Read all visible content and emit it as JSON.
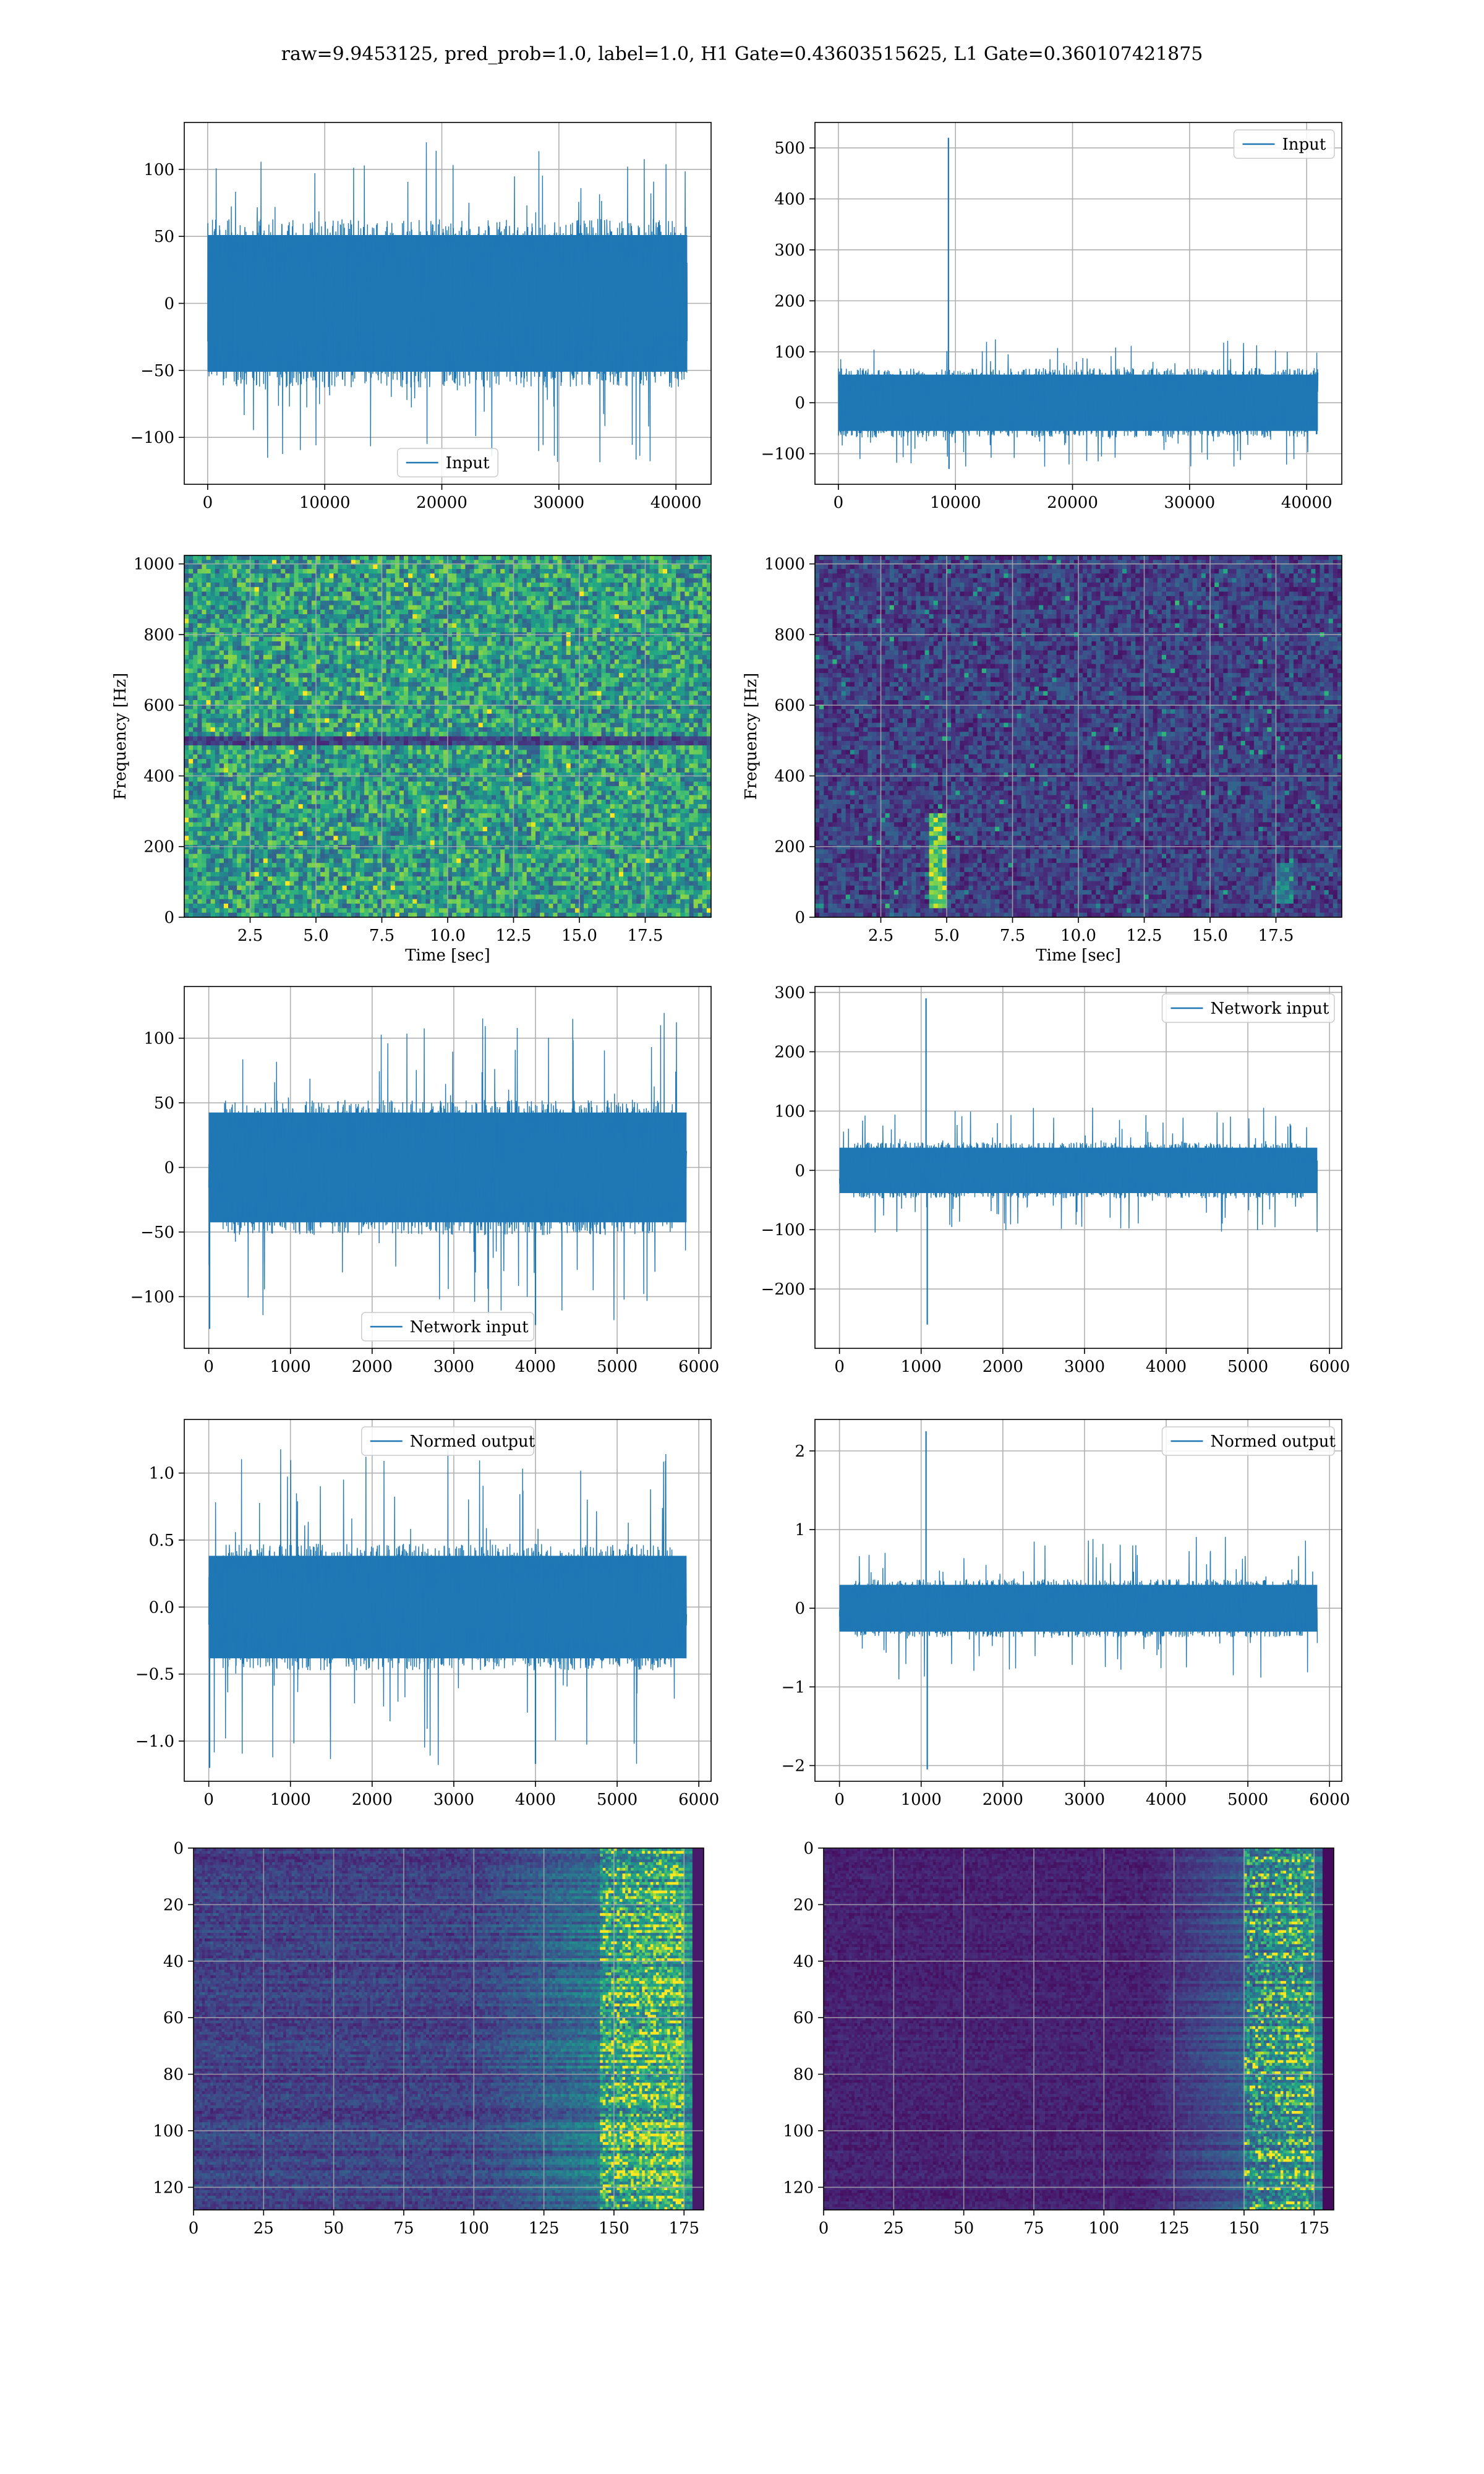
{
  "figure": {
    "suptitle": "raw=9.9453125, pred_prob=1.0, label=1.0, H1 Gate=0.43603515625, L1 Gate=0.360107421875"
  },
  "colors": {
    "line": "#1f77b4",
    "grid": "#b0b0b0",
    "viridis": [
      "#440154",
      "#482475",
      "#414487",
      "#355f8d",
      "#2a788e",
      "#21918c",
      "#22a884",
      "#44bf70",
      "#7ad151",
      "#bddf26",
      "#fde725"
    ]
  },
  "chart_data": [
    {
      "id": "h1-input",
      "type": "line",
      "xlim": [
        -2000,
        43000
      ],
      "ylim": [
        -135,
        135
      ],
      "xticks": [
        0,
        10000,
        20000,
        30000,
        40000
      ],
      "xtick_labels": [
        "0",
        "10000",
        "20000",
        "30000",
        "40000"
      ],
      "yticks": [
        -100,
        -50,
        0,
        50,
        100
      ],
      "ytick_labels": [
        "−100",
        "−50",
        "0",
        "50",
        "100"
      ],
      "legend": {
        "label": "Input",
        "loc": "lower-center"
      },
      "series": [
        {
          "name": "Input",
          "x_range": [
            0,
            40960
          ],
          "envelope": [
            -60,
            60
          ],
          "extremes": [
            -115,
            128
          ],
          "spikes": [],
          "taper": false
        }
      ]
    },
    {
      "id": "l1-input",
      "type": "line",
      "xlim": [
        -2000,
        43000
      ],
      "ylim": [
        -160,
        550
      ],
      "xticks": [
        0,
        10000,
        20000,
        30000,
        40000
      ],
      "xtick_labels": [
        "0",
        "10000",
        "20000",
        "30000",
        "40000"
      ],
      "yticks": [
        -100,
        0,
        100,
        200,
        300,
        400,
        500
      ],
      "ytick_labels": [
        "−100",
        "0",
        "100",
        "200",
        "300",
        "400",
        "500"
      ],
      "legend": {
        "label": "Input",
        "loc": "upper-right"
      },
      "series": [
        {
          "name": "Input",
          "x_range": [
            0,
            40960
          ],
          "envelope": [
            -65,
            65
          ],
          "extremes": [
            -130,
            135
          ],
          "spikes": [
            {
              "x": 9400,
              "y": 520
            },
            {
              "x": 9450,
              "y": -130
            }
          ],
          "taper": false
        }
      ]
    },
    {
      "id": "h1-spectrogram",
      "type": "heatmap",
      "xlim": [
        0,
        20
      ],
      "ylim": [
        0,
        1024
      ],
      "xticks": [
        2.5,
        5.0,
        7.5,
        10.0,
        12.5,
        15.0,
        17.5
      ],
      "xtick_labels": [
        "2.5",
        "5.0",
        "7.5",
        "10.0",
        "12.5",
        "15.0",
        "17.5"
      ],
      "yticks": [
        0,
        200,
        400,
        600,
        800,
        1000
      ],
      "ytick_labels": [
        "0",
        "200",
        "400",
        "600",
        "800",
        "1000"
      ],
      "xlabel": "Time [sec]",
      "ylabel": "Frequency [Hz]",
      "y_direction": "up",
      "texture": {
        "base": 0.28,
        "noise": 0.55,
        "seed": 11,
        "dark_bands": [
          500
        ],
        "features": []
      }
    },
    {
      "id": "l1-spectrogram",
      "type": "heatmap",
      "xlim": [
        0,
        20
      ],
      "ylim": [
        0,
        1024
      ],
      "xticks": [
        2.5,
        5.0,
        7.5,
        10.0,
        12.5,
        15.0,
        17.5
      ],
      "xtick_labels": [
        "2.5",
        "5.0",
        "7.5",
        "10.0",
        "12.5",
        "15.0",
        "17.5"
      ],
      "yticks": [
        0,
        200,
        400,
        600,
        800,
        1000
      ],
      "ytick_labels": [
        "0",
        "200",
        "400",
        "600",
        "800",
        "1000"
      ],
      "xlabel": "Time [sec]",
      "ylabel": "Frequency [Hz]",
      "y_direction": "up",
      "texture": {
        "base": 0.05,
        "noise": 0.28,
        "seed": 23,
        "dark_bands": [],
        "features": [
          {
            "x": 4.7,
            "y0": 30,
            "y1": 300,
            "strength": 0.75
          },
          {
            "x": 17.8,
            "y0": 40,
            "y1": 160,
            "strength": 0.3
          }
        ]
      }
    },
    {
      "id": "h1-network-input",
      "type": "line",
      "xlim": [
        -300,
        6150
      ],
      "ylim": [
        -140,
        140
      ],
      "xticks": [
        0,
        1000,
        2000,
        3000,
        4000,
        5000,
        6000
      ],
      "xtick_labels": [
        "0",
        "1000",
        "2000",
        "3000",
        "4000",
        "5000",
        "6000"
      ],
      "yticks": [
        -100,
        -50,
        0,
        50,
        100
      ],
      "ytick_labels": [
        "−100",
        "−50",
        "0",
        "50",
        "100"
      ],
      "legend": {
        "label": "Network input",
        "loc": "lower-center"
      },
      "series": [
        {
          "name": "Network input",
          "x_range": [
            0,
            5850
          ],
          "envelope": [
            -50,
            50
          ],
          "extremes": [
            -125,
            128
          ],
          "spikes": [
            {
              "x": 10,
              "y": -125
            },
            {
              "x": 4000,
              "y": -122
            }
          ],
          "taper": true
        }
      ]
    },
    {
      "id": "l1-network-input",
      "type": "line",
      "xlim": [
        -300,
        6150
      ],
      "ylim": [
        -300,
        310
      ],
      "xticks": [
        0,
        1000,
        2000,
        3000,
        4000,
        5000,
        6000
      ],
      "xtick_labels": [
        "0",
        "1000",
        "2000",
        "3000",
        "4000",
        "5000",
        "6000"
      ],
      "yticks": [
        -200,
        -100,
        0,
        100,
        200,
        300
      ],
      "ytick_labels": [
        "−200",
        "−100",
        "0",
        "100",
        "200",
        "300"
      ],
      "legend": {
        "label": "Network input",
        "loc": "upper-right"
      },
      "series": [
        {
          "name": "Network input",
          "x_range": [
            0,
            5850
          ],
          "envelope": [
            -45,
            45
          ],
          "extremes": [
            -95,
            115
          ],
          "spikes": [
            {
              "x": 1060,
              "y": 290
            },
            {
              "x": 1075,
              "y": -260
            }
          ],
          "taper": true
        }
      ]
    },
    {
      "id": "h1-normed-output",
      "type": "line",
      "xlim": [
        -300,
        6150
      ],
      "ylim": [
        -1.3,
        1.4
      ],
      "xticks": [
        0,
        1000,
        2000,
        3000,
        4000,
        5000,
        6000
      ],
      "xtick_labels": [
        "0",
        "1000",
        "2000",
        "3000",
        "4000",
        "5000",
        "6000"
      ],
      "yticks": [
        -1.0,
        -0.5,
        0.0,
        0.5,
        1.0
      ],
      "ytick_labels": [
        "−1.0",
        "−0.5",
        "0.0",
        "0.5",
        "1.0"
      ],
      "legend": {
        "label": "Normed output",
        "loc": "upper-center"
      },
      "series": [
        {
          "name": "Normed output",
          "x_range": [
            0,
            5850
          ],
          "envelope": [
            -0.45,
            0.45
          ],
          "extremes": [
            -1.2,
            1.26
          ],
          "spikes": [
            {
              "x": 10,
              "y": -1.2
            },
            {
              "x": 4000,
              "y": -1.17
            }
          ],
          "taper": true
        }
      ]
    },
    {
      "id": "l1-normed-output",
      "type": "line",
      "xlim": [
        -300,
        6150
      ],
      "ylim": [
        -2.2,
        2.4
      ],
      "xticks": [
        0,
        1000,
        2000,
        3000,
        4000,
        5000,
        6000
      ],
      "xtick_labels": [
        "0",
        "1000",
        "2000",
        "3000",
        "4000",
        "5000",
        "6000"
      ],
      "yticks": [
        -2,
        -1,
        0,
        1,
        2
      ],
      "ytick_labels": [
        "−2",
        "−1",
        "0",
        "1",
        "2"
      ],
      "legend": {
        "label": "Normed output",
        "loc": "upper-right"
      },
      "series": [
        {
          "name": "Normed output",
          "x_range": [
            0,
            5850
          ],
          "envelope": [
            -0.35,
            0.35
          ],
          "extremes": [
            -0.95,
            1.0
          ],
          "spikes": [
            {
              "x": 1060,
              "y": 2.25
            },
            {
              "x": 1075,
              "y": -2.05
            }
          ],
          "taper": true
        }
      ]
    },
    {
      "id": "h1-feature-map",
      "type": "heatmap",
      "xlim": [
        0,
        182
      ],
      "ylim": [
        0,
        128
      ],
      "xticks": [
        0,
        25,
        50,
        75,
        100,
        125,
        150,
        175
      ],
      "xtick_labels": [
        "0",
        "25",
        "50",
        "75",
        "100",
        "125",
        "150",
        "175"
      ],
      "yticks": [
        0,
        20,
        40,
        60,
        80,
        100,
        120
      ],
      "ytick_labels": [
        "0",
        "20",
        "40",
        "60",
        "80",
        "100",
        "120"
      ],
      "y_direction": "down",
      "texture": {
        "base": 0.12,
        "noise": 0.3,
        "seed": 37,
        "rows": true,
        "ramp_start": 100,
        "ramp_end": 182,
        "hot_band": [
          145,
          175
        ],
        "features": []
      }
    },
    {
      "id": "l1-feature-map",
      "type": "heatmap",
      "xlim": [
        0,
        182
      ],
      "ylim": [
        0,
        128
      ],
      "xticks": [
        0,
        25,
        50,
        75,
        100,
        125,
        150,
        175
      ],
      "xtick_labels": [
        "0",
        "25",
        "50",
        "75",
        "100",
        "125",
        "150",
        "175"
      ],
      "yticks": [
        0,
        20,
        40,
        60,
        80,
        100,
        120
      ],
      "ytick_labels": [
        "0",
        "20",
        "40",
        "60",
        "80",
        "100",
        "120"
      ],
      "y_direction": "down",
      "texture": {
        "base": 0.05,
        "noise": 0.18,
        "seed": 53,
        "rows": true,
        "ramp_start": 115,
        "ramp_end": 182,
        "hot_band": [
          150,
          175
        ],
        "features": []
      }
    }
  ]
}
